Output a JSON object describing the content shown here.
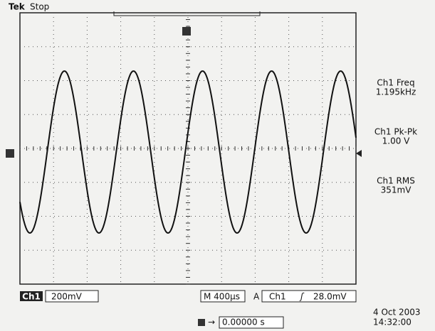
{
  "header": {
    "brand": "Tek",
    "status": "Stop"
  },
  "measurements": [
    {
      "label": "Ch1 Freq",
      "value": "1.195kHz"
    },
    {
      "label": "Ch1 Pk-Pk",
      "value": "1.00 V"
    },
    {
      "label": "Ch1 RMS",
      "value": "351mV"
    }
  ],
  "footer": {
    "channel": "Ch1",
    "scale": "200mV",
    "timebase": "M 400µs",
    "trigger_mode": "A",
    "trigger_source": "Ch1",
    "trigger_level": "28.0mV",
    "position": "0.00000 s",
    "date": "4 Oct 2003",
    "time": "14:32:00"
  }
}
